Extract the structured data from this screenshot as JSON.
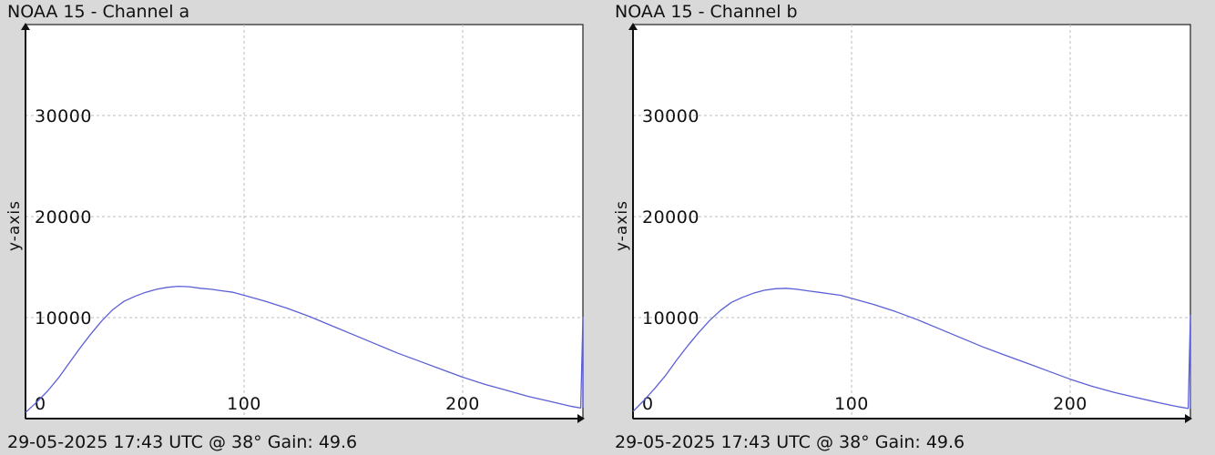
{
  "colors": {
    "background": "#d9d9d9",
    "plot_background": "#ffffff",
    "series": "#5b5fd6",
    "grid": "#bdbdbd"
  },
  "panels": [
    {
      "title": "NOAA 15 - Channel a",
      "ylabel": "y-axis",
      "footer": "29-05-2025 17:43 UTC @ 38° Gain: 49.6"
    },
    {
      "title": "NOAA 15 - Channel b",
      "ylabel": "y-axis",
      "footer": "29-05-2025 17:43 UTC @ 38° Gain: 49.6"
    }
  ],
  "chart_data": [
    {
      "type": "line",
      "title": "NOAA 15 - Channel a",
      "xlabel": "",
      "ylabel": "y-axis",
      "xlim": [
        0,
        255
      ],
      "ylim": [
        0,
        39000
      ],
      "x_ticks": [
        0,
        100,
        200
      ],
      "y_ticks": [
        10000,
        20000,
        30000
      ],
      "grid": true,
      "series": [
        {
          "x": [
            0,
            5,
            10,
            15,
            20,
            25,
            30,
            35,
            40,
            45,
            50,
            55,
            60,
            65,
            70,
            75,
            80,
            85,
            90,
            95,
            100,
            110,
            120,
            130,
            140,
            150,
            160,
            170,
            180,
            190,
            200,
            210,
            220,
            230,
            240,
            250,
            254,
            255,
            255
          ],
          "values": [
            600,
            1600,
            2700,
            4000,
            5500,
            7000,
            8400,
            9700,
            10800,
            11600,
            12100,
            12500,
            12800,
            13000,
            13100,
            13050,
            12900,
            12800,
            12650,
            12500,
            12200,
            11600,
            10900,
            10100,
            9200,
            8300,
            7400,
            6500,
            5700,
            4900,
            4100,
            3400,
            2800,
            2200,
            1700,
            1200,
            1050,
            10000,
            1050
          ]
        }
      ]
    },
    {
      "type": "line",
      "title": "NOAA 15 - Channel b",
      "xlabel": "",
      "ylabel": "y-axis",
      "xlim": [
        0,
        255
      ],
      "ylim": [
        0,
        39000
      ],
      "x_ticks": [
        0,
        100,
        200
      ],
      "y_ticks": [
        10000,
        20000,
        30000
      ],
      "grid": true,
      "series": [
        {
          "x": [
            0,
            5,
            10,
            15,
            20,
            25,
            30,
            35,
            40,
            45,
            50,
            55,
            60,
            65,
            70,
            75,
            80,
            85,
            90,
            95,
            100,
            110,
            120,
            130,
            140,
            150,
            160,
            170,
            180,
            190,
            200,
            210,
            220,
            230,
            240,
            250,
            254,
            255,
            255
          ],
          "values": [
            700,
            1800,
            3000,
            4300,
            5800,
            7200,
            8500,
            9700,
            10700,
            11500,
            12000,
            12400,
            12700,
            12850,
            12900,
            12800,
            12650,
            12500,
            12350,
            12200,
            11900,
            11300,
            10600,
            9800,
            8900,
            8000,
            7100,
            6300,
            5500,
            4700,
            3900,
            3200,
            2600,
            2100,
            1600,
            1150,
            1000,
            10200,
            1000
          ]
        }
      ]
    }
  ]
}
